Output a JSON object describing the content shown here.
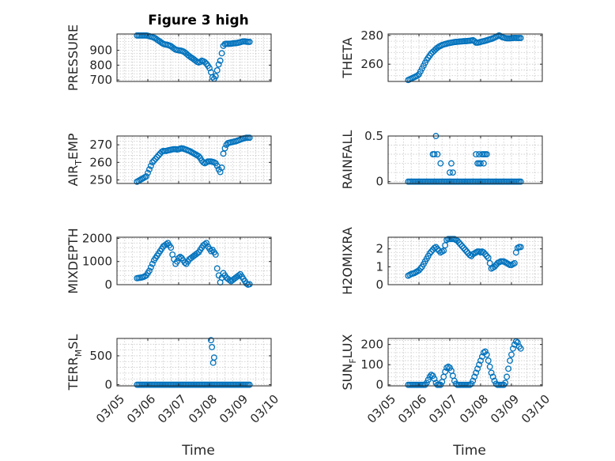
{
  "figure_title": "Figure 3 high",
  "colors": {
    "marker": "#0072bd",
    "axis": "#262626",
    "grid": "#c8c8c8"
  },
  "chart_data": [
    {
      "type": "scatter",
      "ylabel": "PRESSURE",
      "title": "Figure 3 high",
      "ylim": [
        690,
        1010
      ],
      "yticks": [
        700,
        800,
        900
      ],
      "xlim": [
        0,
        5
      ],
      "x": [
        0.65,
        0.7,
        0.75,
        0.8,
        0.85,
        0.9,
        0.95,
        1.0,
        1.05,
        1.1,
        1.15,
        1.2,
        1.25,
        1.3,
        1.35,
        1.4,
        1.45,
        1.5,
        1.55,
        1.6,
        1.65,
        1.7,
        1.75,
        1.8,
        1.85,
        1.9,
        1.95,
        2.0,
        2.05,
        2.1,
        2.15,
        2.2,
        2.25,
        2.3,
        2.35,
        2.4,
        2.45,
        2.5,
        2.55,
        2.6,
        2.65,
        2.7,
        2.75,
        2.8,
        2.85,
        2.9,
        2.95,
        3.0,
        3.05,
        3.1,
        3.15,
        3.2,
        3.25,
        3.3,
        3.35,
        3.4,
        3.45,
        3.5,
        3.55,
        3.6,
        3.65,
        3.7,
        3.75,
        3.8,
        3.85,
        3.9,
        3.95,
        4.0,
        4.05,
        4.1,
        4.15,
        4.2,
        4.25,
        4.3
      ],
      "y": [
        1000,
        1000,
        1000,
        1000,
        1000,
        1000,
        1000,
        998,
        995,
        992,
        990,
        985,
        980,
        972,
        965,
        958,
        950,
        944,
        940,
        938,
        936,
        932,
        928,
        920,
        912,
        905,
        902,
        900,
        898,
        896,
        892,
        886,
        878,
        868,
        860,
        852,
        846,
        838,
        830,
        822,
        818,
        822,
        830,
        826,
        820,
        810,
        796,
        780,
        752,
        718,
        708,
        725,
        765,
        805,
        830,
        880,
        930,
        942,
        944,
        944,
        944,
        945,
        946,
        948,
        948,
        950,
        952,
        955,
        958,
        960,
        960,
        958,
        957,
        957
      ]
    },
    {
      "type": "scatter",
      "ylabel": "THETA",
      "ylim": [
        248,
        281
      ],
      "yticks": [
        260,
        280
      ],
      "xlim": [
        0,
        5
      ],
      "x": [
        0.65,
        0.7,
        0.75,
        0.8,
        0.85,
        0.9,
        0.95,
        1.0,
        1.05,
        1.1,
        1.15,
        1.2,
        1.25,
        1.3,
        1.35,
        1.4,
        1.45,
        1.5,
        1.55,
        1.6,
        1.65,
        1.7,
        1.75,
        1.8,
        1.85,
        1.9,
        1.95,
        2.0,
        2.05,
        2.1,
        2.15,
        2.2,
        2.25,
        2.3,
        2.35,
        2.4,
        2.45,
        2.5,
        2.55,
        2.6,
        2.65,
        2.7,
        2.75,
        2.8,
        2.85,
        2.9,
        2.95,
        3.0,
        3.05,
        3.1,
        3.15,
        3.2,
        3.25,
        3.3,
        3.35,
        3.4,
        3.45,
        3.5,
        3.55,
        3.6,
        3.65,
        3.7,
        3.75,
        3.8,
        3.85,
        3.9,
        3.95,
        4.0,
        4.05,
        4.1,
        4.15,
        4.2,
        4.25,
        4.3
      ],
      "y": [
        249,
        249.5,
        250,
        250.5,
        251,
        251.5,
        252,
        253,
        255,
        257,
        259,
        261,
        263,
        264.5,
        266,
        267.5,
        268.5,
        269.5,
        270.5,
        271.5,
        272.2,
        272.8,
        273.3,
        273.7,
        274,
        274.3,
        274.6,
        274.8,
        275,
        275.2,
        275.4,
        275.5,
        275.6,
        275.7,
        275.8,
        275.9,
        276,
        276,
        276.1,
        276.2,
        276.3,
        276.5,
        276.7,
        276,
        275,
        275,
        275.2,
        275.5,
        275.8,
        276,
        276.3,
        276.6,
        277,
        277.3,
        277.6,
        278,
        278.5,
        279,
        279.5,
        280,
        279.5,
        278.8,
        278.5,
        278.2,
        278,
        278,
        278,
        278.1,
        278.2,
        278.3,
        278.3,
        278.2,
        278.2,
        278.2
      ]
    },
    {
      "type": "scatter",
      "ylabel": "AIR_TEMP",
      "ylim": [
        248,
        275
      ],
      "yticks": [
        250,
        260,
        270
      ],
      "xlim": [
        0,
        5
      ],
      "x": [
        0.65,
        0.7,
        0.75,
        0.8,
        0.85,
        0.9,
        0.95,
        1.0,
        1.05,
        1.1,
        1.15,
        1.2,
        1.25,
        1.3,
        1.35,
        1.4,
        1.45,
        1.5,
        1.55,
        1.6,
        1.65,
        1.7,
        1.75,
        1.8,
        1.85,
        1.9,
        1.95,
        2.0,
        2.05,
        2.1,
        2.15,
        2.2,
        2.25,
        2.3,
        2.35,
        2.4,
        2.45,
        2.5,
        2.55,
        2.6,
        2.65,
        2.7,
        2.75,
        2.8,
        2.85,
        2.9,
        2.95,
        3.0,
        3.05,
        3.1,
        3.15,
        3.2,
        3.25,
        3.3,
        3.35,
        3.4,
        3.45,
        3.5,
        3.55,
        3.6,
        3.65,
        3.7,
        3.75,
        3.8,
        3.85,
        3.9,
        3.95,
        4.0,
        4.05,
        4.1,
        4.15,
        4.2,
        4.25,
        4.3
      ],
      "y": [
        249,
        249.5,
        250,
        250.5,
        251,
        251.5,
        252,
        254,
        256,
        258,
        260,
        261,
        262,
        263,
        264,
        265,
        266,
        266.5,
        266.5,
        266.5,
        266.8,
        267,
        267.2,
        267.4,
        267.5,
        267.5,
        267.3,
        267.5,
        267.8,
        268,
        267.8,
        267.5,
        267.2,
        266.8,
        266.5,
        266,
        265.5,
        265,
        264.5,
        264,
        263.5,
        262.5,
        261,
        260,
        259.5,
        260,
        260.5,
        260.5,
        260.5,
        260.3,
        260,
        259.5,
        258,
        256,
        254.5,
        257,
        265,
        268,
        270,
        271,
        271.2,
        271.4,
        271.6,
        271.8,
        272,
        272.3,
        272.6,
        273,
        273.3,
        273.6,
        273.8,
        274,
        274,
        274
      ]
    },
    {
      "type": "scatter",
      "ylabel": "RAINFALL",
      "ylim": [
        -0.02,
        0.5
      ],
      "yticks": [
        0,
        0.5
      ],
      "ytick_labels": [
        "0",
        "0.5"
      ],
      "xlim": [
        0,
        5
      ],
      "x": [
        0.65,
        0.7,
        0.75,
        0.8,
        0.85,
        0.9,
        0.95,
        1.0,
        1.05,
        1.1,
        1.15,
        1.2,
        1.25,
        1.3,
        1.35,
        1.4,
        1.45,
        1.5,
        1.55,
        1.6,
        1.65,
        1.7,
        1.75,
        1.8,
        1.85,
        1.9,
        1.95,
        2.0,
        2.05,
        2.1,
        2.15,
        2.2,
        2.25,
        2.3,
        2.35,
        2.4,
        2.45,
        2.5,
        2.55,
        2.6,
        2.65,
        2.7,
        2.75,
        2.8,
        2.85,
        2.9,
        2.95,
        3.0,
        3.05,
        3.1,
        3.15,
        3.2,
        3.25,
        3.3,
        3.35,
        3.4,
        3.45,
        3.5,
        3.55,
        3.6,
        3.65,
        3.7,
        3.75,
        3.8,
        3.85,
        3.9,
        3.95,
        4.0,
        4.05,
        4.1,
        4.15,
        4.2,
        4.25,
        4.3,
        1.45,
        1.5,
        1.55,
        1.6,
        1.7,
        2.0,
        2.05,
        2.1,
        2.85,
        2.9,
        2.95,
        2.95,
        3.0,
        3.05,
        3.1,
        3.1,
        3.15,
        3.2
      ],
      "y": [
        0,
        0,
        0,
        0,
        0,
        0,
        0,
        0,
        0,
        0,
        0,
        0,
        0,
        0,
        0,
        0,
        0,
        0,
        0,
        0,
        0,
        0,
        0,
        0,
        0,
        0,
        0,
        0,
        0,
        0,
        0,
        0,
        0,
        0,
        0,
        0,
        0,
        0,
        0,
        0,
        0,
        0,
        0,
        0,
        0,
        0,
        0,
        0,
        0,
        0,
        0,
        0,
        0,
        0,
        0,
        0,
        0,
        0,
        0,
        0,
        0,
        0,
        0,
        0,
        0,
        0,
        0,
        0,
        0,
        0,
        0,
        0,
        0,
        0,
        0.3,
        0.3,
        0.5,
        0.3,
        0.2,
        0.1,
        0.2,
        0.1,
        0.3,
        0.2,
        0.2,
        0.3,
        0.2,
        0.3,
        0.3,
        0.2,
        0.3,
        0.3
      ]
    },
    {
      "type": "scatter",
      "ylabel": "MIXDEPTH",
      "ylim": [
        0,
        2050
      ],
      "yticks": [
        0,
        1000,
        2000
      ],
      "xlim": [
        0,
        5
      ],
      "x": [
        0.65,
        0.7,
        0.75,
        0.8,
        0.85,
        0.9,
        0.95,
        1.0,
        1.05,
        1.1,
        1.15,
        1.2,
        1.25,
        1.3,
        1.35,
        1.4,
        1.45,
        1.5,
        1.55,
        1.6,
        1.65,
        1.7,
        1.75,
        1.8,
        1.85,
        1.9,
        1.95,
        2.0,
        2.05,
        2.1,
        2.15,
        2.2,
        2.25,
        2.3,
        2.35,
        2.4,
        2.45,
        2.5,
        2.55,
        2.6,
        2.65,
        2.7,
        2.75,
        2.8,
        2.85,
        2.9,
        2.95,
        3.0,
        3.05,
        3.1,
        3.15,
        3.2,
        3.25,
        3.3,
        3.35,
        3.4,
        3.45,
        3.5,
        3.55,
        3.6,
        3.65,
        3.7,
        3.75,
        3.8,
        3.85,
        3.9,
        3.95,
        4.0,
        4.05,
        4.1,
        4.15,
        4.2,
        4.25,
        4.3
      ],
      "y": [
        280,
        290,
        300,
        310,
        330,
        360,
        400,
        500,
        600,
        750,
        900,
        1050,
        1150,
        1250,
        1350,
        1450,
        1550,
        1650,
        1700,
        1750,
        1800,
        1700,
        1600,
        1300,
        1100,
        900,
        1000,
        1150,
        1200,
        1150,
        1050,
        950,
        900,
        1000,
        1100,
        1150,
        1200,
        1250,
        1300,
        1350,
        1400,
        1500,
        1600,
        1700,
        1750,
        1800,
        1650,
        1550,
        1450,
        1500,
        1400,
        1300,
        700,
        400,
        100,
        300,
        500,
        400,
        300,
        250,
        200,
        150,
        200,
        250,
        300,
        350,
        400,
        450,
        350,
        250,
        150,
        50,
        0,
        20
      ]
    },
    {
      "type": "scatter",
      "ylabel": "H2OMIXRA",
      "ylim": [
        0,
        2.65
      ],
      "yticks": [
        0,
        1,
        2
      ],
      "xlim": [
        0,
        5
      ],
      "x": [
        0.65,
        0.7,
        0.75,
        0.8,
        0.85,
        0.9,
        0.95,
        1.0,
        1.05,
        1.1,
        1.15,
        1.2,
        1.25,
        1.3,
        1.35,
        1.4,
        1.45,
        1.5,
        1.55,
        1.6,
        1.65,
        1.7,
        1.75,
        1.8,
        1.85,
        1.9,
        1.95,
        2.0,
        2.05,
        2.1,
        2.15,
        2.2,
        2.25,
        2.3,
        2.35,
        2.4,
        2.45,
        2.5,
        2.55,
        2.6,
        2.65,
        2.7,
        2.75,
        2.8,
        2.85,
        2.9,
        2.95,
        3.0,
        3.05,
        3.1,
        3.15,
        3.2,
        3.25,
        3.3,
        3.35,
        3.4,
        3.45,
        3.5,
        3.55,
        3.6,
        3.65,
        3.7,
        3.75,
        3.8,
        3.85,
        3.9,
        3.95,
        4.0,
        4.05,
        4.1,
        4.15,
        4.2,
        4.25,
        4.3
      ],
      "y": [
        0.5,
        0.55,
        0.6,
        0.62,
        0.65,
        0.7,
        0.75,
        0.8,
        0.9,
        1.0,
        1.15,
        1.3,
        1.45,
        1.6,
        1.75,
        1.85,
        1.95,
        2.05,
        2.1,
        2.0,
        1.9,
        1.8,
        1.85,
        1.9,
        2.2,
        2.5,
        2.55,
        2.55,
        2.55,
        2.55,
        2.55,
        2.5,
        2.45,
        2.35,
        2.25,
        2.15,
        2.05,
        1.95,
        1.85,
        1.75,
        1.65,
        1.6,
        1.7,
        1.75,
        1.8,
        1.85,
        1.85,
        1.8,
        1.85,
        1.8,
        1.7,
        1.6,
        1.5,
        1.2,
        0.9,
        0.95,
        1.0,
        1.1,
        1.2,
        1.25,
        1.3,
        1.3,
        1.3,
        1.25,
        1.2,
        1.15,
        1.1,
        1.1,
        1.15,
        1.2,
        1.8,
        2.05,
        2.1,
        2.1
      ]
    },
    {
      "type": "scatter",
      "ylabel": "TERR_MSL",
      "ylim": [
        -20,
        800
      ],
      "yticks": [
        0,
        500
      ],
      "xlim": [
        0,
        5
      ],
      "x": [
        0.65,
        0.7,
        0.75,
        0.8,
        0.85,
        0.9,
        0.95,
        1.0,
        1.05,
        1.1,
        1.15,
        1.2,
        1.25,
        1.3,
        1.35,
        1.4,
        1.45,
        1.5,
        1.55,
        1.6,
        1.65,
        1.7,
        1.75,
        1.8,
        1.85,
        1.9,
        1.95,
        2.0,
        2.05,
        2.1,
        2.15,
        2.2,
        2.25,
        2.3,
        2.35,
        2.4,
        2.45,
        2.5,
        2.55,
        2.6,
        2.65,
        2.7,
        2.75,
        2.8,
        2.85,
        2.9,
        2.95,
        3.0,
        3.05,
        3.1,
        3.15,
        3.2,
        3.25,
        3.3,
        3.35,
        3.4,
        3.45,
        3.5,
        3.55,
        3.6,
        3.65,
        3.7,
        3.75,
        3.8,
        3.85,
        3.9,
        3.95,
        4.0,
        4.05,
        4.1,
        4.15,
        4.2,
        4.25,
        4.3,
        3.05,
        3.08,
        3.12,
        3.15
      ],
      "y": [
        0,
        0,
        0,
        0,
        0,
        0,
        0,
        0,
        0,
        0,
        0,
        0,
        0,
        0,
        0,
        0,
        0,
        0,
        0,
        0,
        0,
        0,
        0,
        0,
        0,
        0,
        0,
        0,
        0,
        0,
        0,
        0,
        0,
        0,
        0,
        0,
        0,
        0,
        0,
        0,
        0,
        0,
        0,
        0,
        0,
        0,
        0,
        0,
        0,
        0,
        0,
        0,
        0,
        0,
        0,
        0,
        0,
        0,
        0,
        0,
        0,
        0,
        0,
        0,
        0,
        0,
        0,
        0,
        0,
        0,
        0,
        0,
        0,
        0,
        770,
        650,
        380,
        470
      ]
    },
    {
      "type": "scatter",
      "ylabel": "SUN_FLUX",
      "ylim": [
        -5,
        230
      ],
      "yticks": [
        0,
        100,
        200
      ],
      "xlim": [
        0,
        5
      ],
      "x": [
        0.65,
        0.7,
        0.75,
        0.8,
        0.85,
        0.9,
        0.95,
        1.0,
        1.05,
        1.1,
        1.15,
        1.2,
        1.25,
        1.3,
        1.35,
        1.4,
        1.45,
        1.5,
        1.55,
        1.6,
        1.65,
        1.7,
        1.75,
        1.8,
        1.85,
        1.9,
        1.95,
        2.0,
        2.05,
        2.1,
        2.15,
        2.2,
        2.25,
        2.3,
        2.35,
        2.4,
        2.45,
        2.5,
        2.55,
        2.6,
        2.65,
        2.7,
        2.75,
        2.8,
        2.85,
        2.9,
        2.95,
        3.0,
        3.05,
        3.1,
        3.15,
        3.2,
        3.25,
        3.3,
        3.35,
        3.4,
        3.45,
        3.5,
        3.55,
        3.6,
        3.65,
        3.7,
        3.75,
        3.8,
        3.85,
        3.9,
        3.95,
        4.0,
        4.05,
        4.1,
        4.15,
        4.2,
        4.25,
        4.3
      ],
      "y": [
        0,
        0,
        0,
        0,
        0,
        0,
        0,
        0,
        0,
        0,
        0,
        0,
        10,
        25,
        40,
        50,
        45,
        30,
        10,
        0,
        0,
        0,
        15,
        40,
        65,
        85,
        90,
        85,
        70,
        45,
        20,
        5,
        0,
        0,
        0,
        0,
        0,
        0,
        0,
        0,
        0,
        5,
        20,
        40,
        60,
        80,
        100,
        120,
        140,
        160,
        165,
        150,
        120,
        90,
        60,
        40,
        20,
        5,
        0,
        0,
        0,
        0,
        0,
        10,
        40,
        80,
        120,
        150,
        180,
        200,
        215,
        210,
        190,
        180
      ]
    }
  ],
  "x_axis": {
    "label": "Time",
    "tick_positions": [
      0,
      1,
      2,
      3,
      4,
      5
    ],
    "tick_labels": [
      "03/05",
      "03/06",
      "03/07",
      "03/08",
      "03/09",
      "03/10"
    ]
  }
}
